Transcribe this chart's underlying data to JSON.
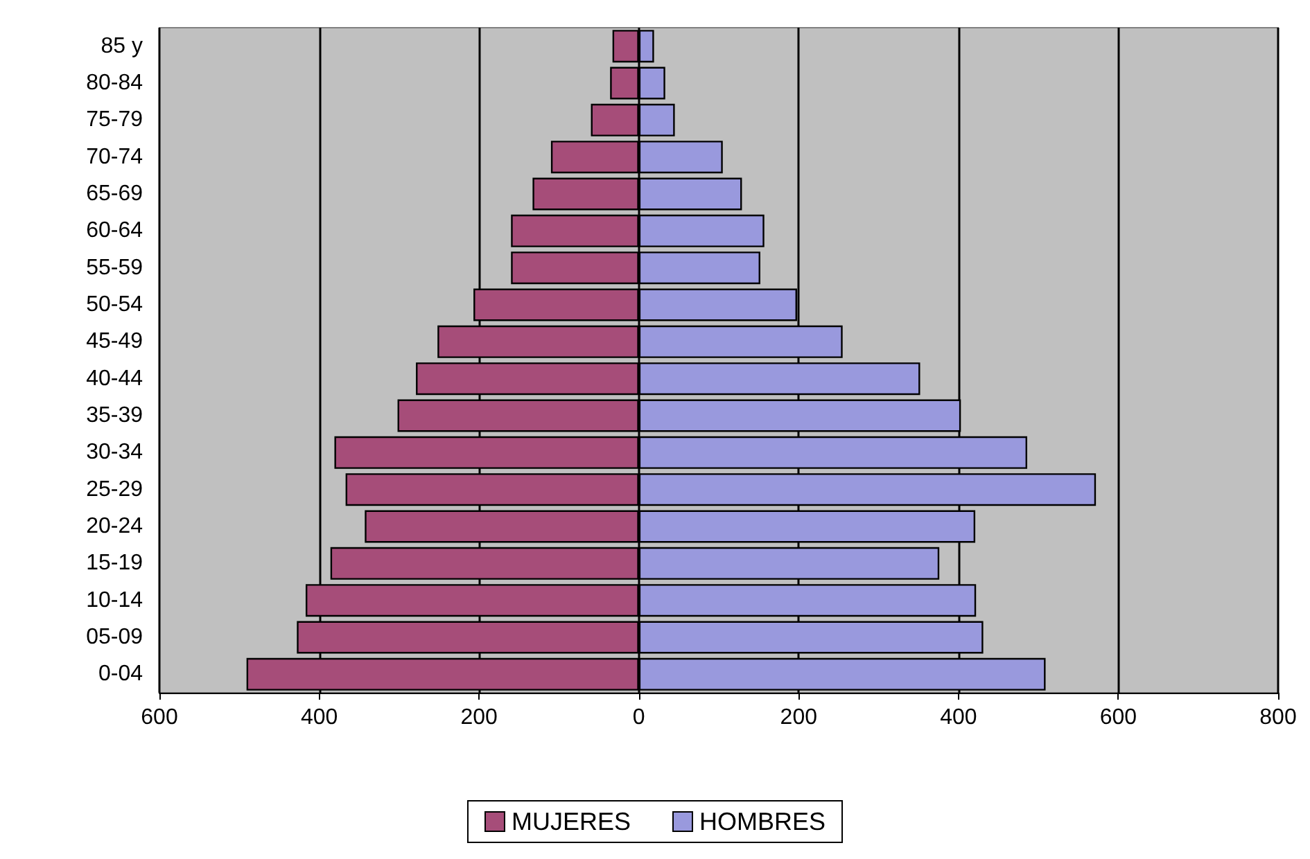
{
  "chart_data": {
    "type": "bar",
    "orientation": "horizontal",
    "stacked": true,
    "categories": [
      "85 y",
      "80-84",
      "75-79",
      "70-74",
      "65-69",
      "60-64",
      "55-59",
      "50-54",
      "45-49",
      "40-44",
      "35-39",
      "30-34",
      "25-29",
      "20-24",
      "15-19",
      "10-14",
      "05-09",
      "0-04"
    ],
    "series": [
      {
        "name": "MUJERES",
        "color": "#a64d79",
        "values": [
          -33,
          -36,
          -60,
          -110,
          -133,
          -160,
          -160,
          -207,
          -252,
          -279,
          -302,
          -381,
          -367,
          -343,
          -386,
          -417,
          -428,
          -491
        ]
      },
      {
        "name": "HOMBRES",
        "color": "#9999dd",
        "values": [
          19,
          33,
          45,
          105,
          129,
          157,
          152,
          198,
          255,
          352,
          403,
          486,
          572,
          421,
          376,
          422,
          431,
          509
        ]
      }
    ],
    "xlim": [
      -600,
      800
    ],
    "xticks": [
      {
        "value": -600,
        "label": "600"
      },
      {
        "value": -400,
        "label": "400"
      },
      {
        "value": -200,
        "label": "200"
      },
      0,
      200,
      400,
      600,
      800
    ],
    "grid": "x",
    "legend": "bottom"
  }
}
